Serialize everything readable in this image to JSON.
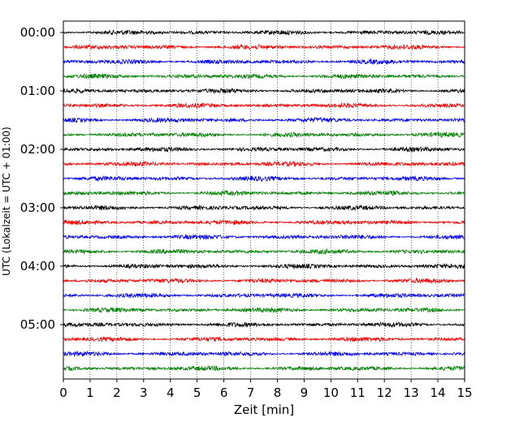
{
  "chart_data": {
    "type": "line",
    "subtype": "helicorder",
    "xlabel": "Zeit  [min]",
    "ylabel": "UTC (Lokalzeit = UTC + 01:00)",
    "xlim": [
      0,
      15
    ],
    "x_ticks": [
      0,
      1,
      2,
      3,
      4,
      5,
      6,
      7,
      8,
      9,
      10,
      11,
      12,
      13,
      14,
      15
    ],
    "x_tick_labels": [
      "0",
      "1",
      "2",
      "3",
      "4",
      "5",
      "6",
      "7",
      "8",
      "9",
      "10",
      "11",
      "12",
      "13",
      "14",
      "15"
    ],
    "x_grid": "dotted vertical lines at each minute",
    "y_tick_labels": [
      "00:00",
      "01:00",
      "02:00",
      "03:00",
      "04:00",
      "05:00"
    ],
    "y_tick_rows": [
      0,
      4,
      8,
      12,
      16,
      20
    ],
    "rows": 24,
    "row_interval_minutes": 15,
    "trace_colors": [
      "#000000",
      "#ff0000",
      "#0000ff",
      "#008000"
    ],
    "amplitude": "low-level noise on every trace, no distinct events"
  }
}
